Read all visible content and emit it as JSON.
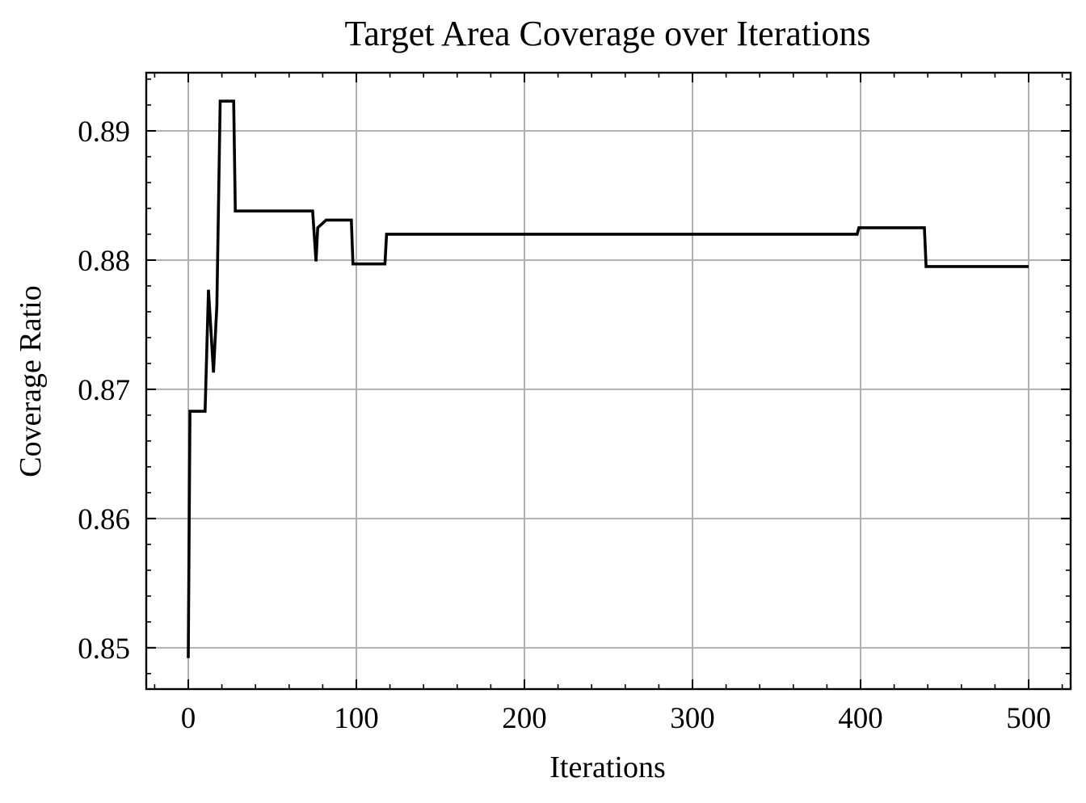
{
  "chart_data": {
    "type": "line",
    "title": "Target Area Coverage over Iterations",
    "xlabel": "Iterations",
    "ylabel": "Coverage Ratio",
    "xlim": [
      -25,
      525
    ],
    "ylim": [
      0.8468,
      0.8945
    ],
    "xticks": [
      0,
      100,
      200,
      300,
      400,
      500
    ],
    "xtick_labels": [
      "0",
      "100",
      "200",
      "300",
      "400",
      "500"
    ],
    "yticks": [
      0.85,
      0.86,
      0.87,
      0.88,
      0.89
    ],
    "ytick_labels": [
      "0.85",
      "0.86",
      "0.87",
      "0.88",
      "0.89"
    ],
    "grid": true,
    "legend": "none",
    "series": [
      {
        "color": "#000000",
        "x": [
          0,
          1,
          1,
          10,
          10,
          12,
          12,
          15,
          15,
          17,
          17,
          19,
          19,
          27,
          27,
          28,
          28,
          74,
          74,
          76,
          76,
          77,
          77,
          82,
          82,
          97,
          97,
          98,
          98,
          117,
          117,
          118,
          118,
          398,
          398,
          399,
          399,
          438,
          438,
          439,
          439,
          500
        ],
        "y": [
          0.8492,
          0.8683,
          0.8683,
          0.8683,
          0.8683,
          0.8777,
          0.8777,
          0.8713,
          0.8713,
          0.8765,
          0.8765,
          0.8923,
          0.8923,
          0.8923,
          0.8923,
          0.8838,
          0.8838,
          0.8838,
          0.8838,
          0.8799,
          0.8799,
          0.8825,
          0.8825,
          0.8831,
          0.8831,
          0.8831,
          0.8831,
          0.8797,
          0.8797,
          0.8797,
          0.8797,
          0.882,
          0.882,
          0.882,
          0.882,
          0.8825,
          0.8825,
          0.8825,
          0.8825,
          0.8795,
          0.8795,
          0.8795
        ]
      }
    ]
  }
}
